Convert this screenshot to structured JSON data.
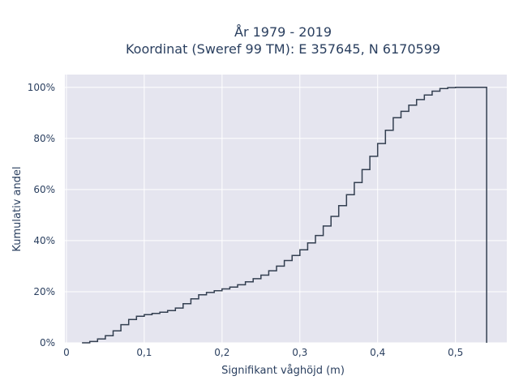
{
  "chart_data": {
    "type": "line",
    "line_shape": "step",
    "title_line1": "År 1979 - 2019",
    "title_line2": "Koordinat (Sweref 99 TM): E 357645, N 6170599",
    "xlabel": "Signifikant våghöjd (m)",
    "ylabel": "Kumulativ andel",
    "xlim": [
      -0.002,
      0.566
    ],
    "ylim": [
      0,
      1.05
    ],
    "grid": true,
    "x_ticks": [
      0,
      0.1,
      0.2,
      0.3,
      0.4,
      0.5
    ],
    "x_tick_labels": [
      "0",
      "0,1",
      "0,2",
      "0,3",
      "0,4",
      "0,5"
    ],
    "y_ticks": [
      0,
      0.2,
      0.4,
      0.6,
      0.8,
      1.0
    ],
    "y_tick_labels": [
      "0%",
      "20%",
      "40%",
      "60%",
      "80%",
      "100%"
    ],
    "colors": {
      "plot_bg": "#e5e5ef",
      "grid": "#ffffff",
      "line": "#333f50",
      "text": "#2a3f5f"
    },
    "series": [
      {
        "x": [
          0.02,
          0.03,
          0.04,
          0.05,
          0.06,
          0.07,
          0.08,
          0.09,
          0.1,
          0.11,
          0.12,
          0.13,
          0.14,
          0.15,
          0.16,
          0.17,
          0.18,
          0.19,
          0.2,
          0.21,
          0.22,
          0.23,
          0.24,
          0.25,
          0.26,
          0.27,
          0.28,
          0.29,
          0.3,
          0.31,
          0.32,
          0.33,
          0.34,
          0.35,
          0.36,
          0.37,
          0.38,
          0.39,
          0.4,
          0.41,
          0.42,
          0.43,
          0.44,
          0.45,
          0.46,
          0.47,
          0.48,
          0.49,
          0.5,
          0.51,
          0.52,
          0.53,
          0.54,
          0.54
        ],
        "y": [
          0.0,
          0.005,
          0.015,
          0.028,
          0.047,
          0.071,
          0.091,
          0.104,
          0.11,
          0.115,
          0.12,
          0.126,
          0.136,
          0.153,
          0.172,
          0.188,
          0.197,
          0.204,
          0.211,
          0.218,
          0.227,
          0.239,
          0.251,
          0.265,
          0.282,
          0.3,
          0.322,
          0.342,
          0.364,
          0.391,
          0.42,
          0.457,
          0.495,
          0.537,
          0.58,
          0.627,
          0.678,
          0.73,
          0.78,
          0.832,
          0.881,
          0.906,
          0.93,
          0.952,
          0.97,
          0.985,
          0.995,
          0.999,
          1.0,
          1.0,
          1.0,
          1.0,
          1.0,
          0.0
        ]
      }
    ]
  }
}
